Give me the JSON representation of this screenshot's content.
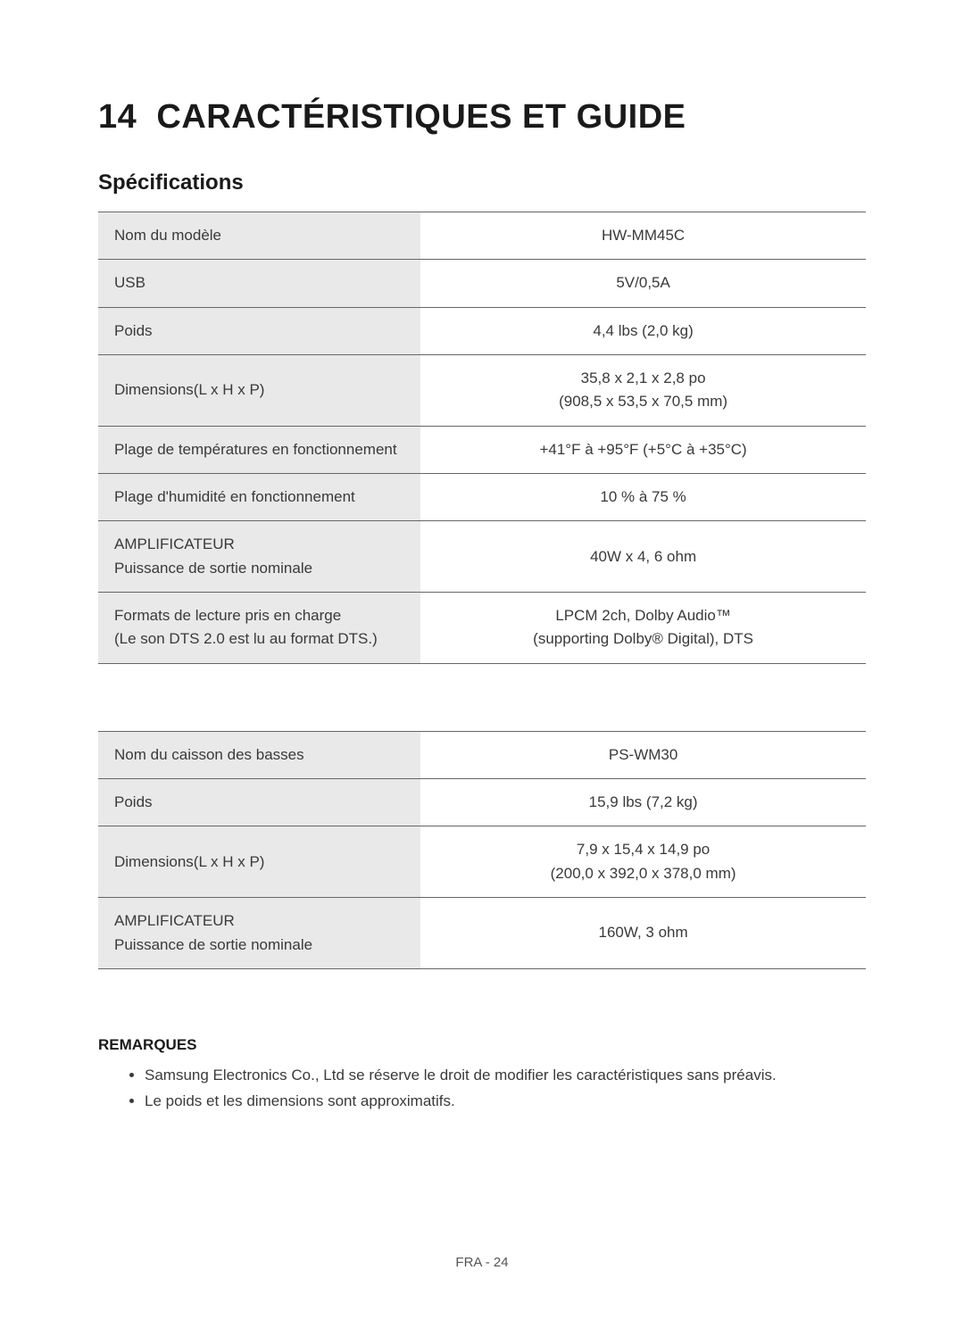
{
  "colors": {
    "background": "#ffffff",
    "text_primary": "#1a1a1a",
    "text_body": "#3a3a3a",
    "row_border": "#666666",
    "label_bg": "#e9e9e9",
    "footer_text": "#555555"
  },
  "typography": {
    "chapter_title_size_pt": 38,
    "section_title_size_pt": 24,
    "body_size_pt": 17,
    "footer_size_pt": 15
  },
  "chapter": {
    "number": "14",
    "title": "CARACTÉRISTIQUES ET GUIDE"
  },
  "section_title": "Spécifications",
  "table1": {
    "type": "table",
    "column_widths_pct": [
      42,
      58
    ],
    "label_align": "left",
    "value_align": "center",
    "rows": [
      {
        "label": "Nom du modèle",
        "value": "HW-MM45C"
      },
      {
        "label": "USB",
        "value": "5V/0,5A"
      },
      {
        "label": "Poids",
        "value": "4,4 lbs (2,0 kg)"
      },
      {
        "label": "Dimensions(L x H x P)",
        "value": "35,8 x 2,1 x 2,8 po\n(908,5 x 53,5 x 70,5 mm)"
      },
      {
        "label": "Plage de températures en fonctionnement",
        "value": "+41°F à +95°F (+5°C à +35°C)"
      },
      {
        "label": "Plage d'humidité en fonctionnement",
        "value": "10 % à 75 %"
      },
      {
        "label": "AMPLIFICATEUR\nPuissance de sortie nominale",
        "value": "40W x 4, 6 ohm"
      },
      {
        "label": "Formats de lecture pris en charge\n(Le son DTS 2.0 est lu au format DTS.)",
        "value": "LPCM 2ch, Dolby Audio™\n(supporting Dolby® Digital), DTS"
      }
    ]
  },
  "table2": {
    "type": "table",
    "column_widths_pct": [
      42,
      58
    ],
    "label_align": "left",
    "value_align": "center",
    "rows": [
      {
        "label": "Nom du caisson des basses",
        "value": "PS-WM30"
      },
      {
        "label": "Poids",
        "value": "15,9 lbs (7,2 kg)"
      },
      {
        "label": "Dimensions(L x H x P)",
        "value": "7,9 x 15,4 x 14,9 po\n(200,0 x 392,0 x 378,0 mm)"
      },
      {
        "label": "AMPLIFICATEUR\nPuissance de sortie nominale",
        "value": "160W, 3 ohm"
      }
    ]
  },
  "notes": {
    "heading": "REMARQUES",
    "items": [
      "Samsung Electronics Co., Ltd se réserve le droit de modifier les caractéristiques sans préavis.",
      "Le poids et les dimensions sont approximatifs."
    ]
  },
  "footer": "FRA - 24"
}
